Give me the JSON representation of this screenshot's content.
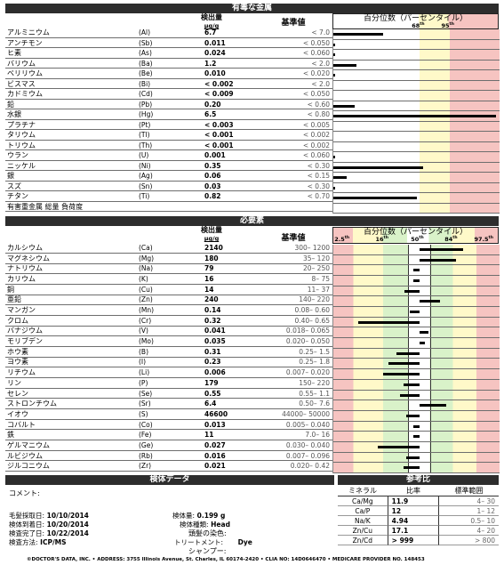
{
  "toxic": {
    "header": "有毒な金属",
    "col_result": "検出量",
    "col_unit": "µg/g",
    "col_reference": "基準値",
    "col_percentile": "百分位数（パーセンタイル）",
    "pct_labels": [
      {
        "n": "68",
        "s": "th"
      },
      {
        "n": "95",
        "s": "th"
      }
    ],
    "rows": [
      {
        "name": "アルミニウム",
        "symbol": "(Al)",
        "value": "6.7",
        "reference": "< 7.0",
        "bar": 0.3
      },
      {
        "name": "アンチモン",
        "symbol": "(Sb)",
        "value": "0.011",
        "reference": "< 0.050",
        "bar": 0.01
      },
      {
        "name": "ヒ素",
        "symbol": "(As)",
        "value": "0.024",
        "reference": "< 0.060",
        "bar": 0.01
      },
      {
        "name": "バリウム",
        "symbol": "(Ba)",
        "value": "1.2",
        "reference": "< 2.0",
        "bar": 0.14
      },
      {
        "name": "ベリリウム",
        "symbol": "(Be)",
        "value": "0.010",
        "reference": "< 0.020",
        "bar": 0.01
      },
      {
        "name": "ビスマス",
        "symbol": "(Bi)",
        "value": "< 0.002",
        "reference": "< 2.0",
        "bar": 0
      },
      {
        "name": "カドミウム",
        "symbol": "(Cd)",
        "value": "< 0.009",
        "reference": "< 0.050",
        "bar": 0
      },
      {
        "name": "鉛",
        "symbol": "(Pb)",
        "value": "0.20",
        "reference": "< 0.60",
        "bar": 0.13
      },
      {
        "name": "水銀",
        "symbol": "(Hg)",
        "value": "6.5",
        "reference": "< 0.80",
        "bar": 0.98
      },
      {
        "name": "プラチナ",
        "symbol": "(Pt)",
        "value": "< 0.003",
        "reference": "< 0.005",
        "bar": 0
      },
      {
        "name": "タリウム",
        "symbol": "(Tl)",
        "value": "< 0.001",
        "reference": "< 0.002",
        "bar": 0
      },
      {
        "name": "トリウム",
        "symbol": "(Th)",
        "value": "< 0.001",
        "reference": "< 0.002",
        "bar": 0
      },
      {
        "name": "ウラン",
        "symbol": "(U)",
        "value": "0.001",
        "reference": "< 0.060",
        "bar": 0.01
      },
      {
        "name": "ニッケル",
        "symbol": "(Ni)",
        "value": "0.35",
        "reference": "< 0.30",
        "bar": 0.54
      },
      {
        "name": "銀",
        "symbol": "(Ag)",
        "value": "0.06",
        "reference": "< 0.15",
        "bar": 0.08
      },
      {
        "name": "スズ",
        "symbol": "(Sn)",
        "value": "0.03",
        "reference": "< 0.30",
        "bar": 0.01
      },
      {
        "name": "チタン",
        "symbol": "(Ti)",
        "value": "0.82",
        "reference": "< 0.70",
        "bar": 0.5
      },
      {
        "name": "有害重金属 総量 負荷度",
        "symbol": "",
        "value": "",
        "reference": "",
        "bar": 0
      }
    ]
  },
  "essential": {
    "header": "必要素",
    "col_result": "検出量",
    "col_unit": "µg/g",
    "col_reference": "基準値",
    "col_percentile": "百分位数（パーセンタイル）",
    "pct_labels": [
      {
        "n": "2.5",
        "s": "th"
      },
      {
        "n": "16",
        "s": "th"
      },
      {
        "n": "50",
        "s": "th"
      },
      {
        "n": "84",
        "s": "th"
      },
      {
        "n": "97.5",
        "s": "th"
      }
    ],
    "rows": [
      {
        "name": "カルシウム",
        "symbol": "(Ca)",
        "value": "2140",
        "reference": "300– 1200",
        "from": 0.52,
        "to": 0.78
      },
      {
        "name": "マグネシウム",
        "symbol": "(Mg)",
        "value": "180",
        "reference": "35– 120",
        "from": 0.52,
        "to": 0.74
      },
      {
        "name": "ナトリウム",
        "symbol": "(Na)",
        "value": "79",
        "reference": "20– 250",
        "from": 0.48,
        "to": 0.52
      },
      {
        "name": "カリウム",
        "symbol": "(K)",
        "value": "16",
        "reference": "8– 75",
        "from": 0.48,
        "to": 0.52
      },
      {
        "name": "銅",
        "symbol": "(Cu)",
        "value": "14",
        "reference": "11– 37",
        "from": 0.43,
        "to": 0.52
      },
      {
        "name": "亜鉛",
        "symbol": "(Zn)",
        "value": "240",
        "reference": "140– 220",
        "from": 0.52,
        "to": 0.64
      },
      {
        "name": "マンガン",
        "symbol": "(Mn)",
        "value": "0.14",
        "reference": "0.08– 0.60",
        "from": 0.46,
        "to": 0.52
      },
      {
        "name": "クロム",
        "symbol": "(Cr)",
        "value": "0.32",
        "reference": "0.40– 0.65",
        "from": 0.15,
        "to": 0.52
      },
      {
        "name": "バナジウム",
        "symbol": "(V)",
        "value": "0.041",
        "reference": "0.018– 0.065",
        "from": 0.52,
        "to": 0.57
      },
      {
        "name": "モリブデン",
        "symbol": "(Mo)",
        "value": "0.035",
        "reference": "0.020– 0.050",
        "from": 0.52,
        "to": 0.55
      },
      {
        "name": "ホウ素",
        "symbol": "(B)",
        "value": "0.31",
        "reference": "0.25– 1.5",
        "from": 0.38,
        "to": 0.52
      },
      {
        "name": "ヨウ素",
        "symbol": "(I)",
        "value": "0.23",
        "reference": "0.25– 1.8",
        "from": 0.33,
        "to": 0.52
      },
      {
        "name": "リチウム",
        "symbol": "(Li)",
        "value": "0.006",
        "reference": "0.007– 0.020",
        "from": 0.3,
        "to": 0.52
      },
      {
        "name": "リン",
        "symbol": "(P)",
        "value": "179",
        "reference": "150– 220",
        "from": 0.42,
        "to": 0.52
      },
      {
        "name": "セレン",
        "symbol": "(Se)",
        "value": "0.55",
        "reference": "0.55– 1.1",
        "from": 0.4,
        "to": 0.52
      },
      {
        "name": "ストロンチウム",
        "symbol": "(Sr)",
        "value": "6.4",
        "reference": "0.50– 7.6",
        "from": 0.52,
        "to": 0.68
      },
      {
        "name": "イオウ",
        "symbol": "(S)",
        "value": "46600",
        "reference": "44000– 50000",
        "from": 0.44,
        "to": 0.52
      },
      {
        "name": "コバルト",
        "symbol": "(Co)",
        "value": "0.013",
        "reference": "0.005– 0.040",
        "from": 0.48,
        "to": 0.52
      },
      {
        "name": "鉄",
        "symbol": "(Fe)",
        "value": "11",
        "reference": "7.0– 16",
        "from": 0.48,
        "to": 0.52
      },
      {
        "name": "ゲルマニウム",
        "symbol": "(Ge)",
        "value": "0.027",
        "reference": "0.030– 0.040",
        "from": 0.27,
        "to": 0.52
      },
      {
        "name": "ルビジウム",
        "symbol": "(Rb)",
        "value": "0.016",
        "reference": "0.007– 0.096",
        "from": 0.44,
        "to": 0.52
      },
      {
        "name": "ジルコニウム",
        "symbol": "(Zr)",
        "value": "0.021",
        "reference": "0.020– 0.42",
        "from": 0.42,
        "to": 0.52
      }
    ]
  },
  "specimen": {
    "header": "検体データ",
    "comment_label": "コメント:",
    "collected_label": "毛髪採取日:",
    "collected": "10/10/2014",
    "received_label": "検体到着日:",
    "received": "10/20/2014",
    "completed_label": "検査完了日:",
    "completed": "10/22/2014",
    "method_label": "検査方法:",
    "method": "ICP/MS",
    "sample_size_label": "検体量:",
    "sample_size": "0.199 g",
    "sample_type_label": "検体種類:",
    "sample_type": "Head",
    "hair_color_label": "頭髪の染色:",
    "treatment_label": "トリートメント:",
    "treatment": "Dye",
    "shampoo_label": "シャンプー:"
  },
  "ratios": {
    "header": "参考比",
    "col_element": "ミネラル",
    "col_ratio": "比率",
    "col_range": "標準範囲",
    "rows": [
      {
        "element": "Ca/Mg",
        "ratio": "11.9",
        "range": "4– 30"
      },
      {
        "element": "Ca/P",
        "ratio": "12",
        "range": "1– 12"
      },
      {
        "element": "Na/K",
        "ratio": "4.94",
        "range": "0.5– 10"
      },
      {
        "element": "Zn/Cu",
        "ratio": "17.1",
        "range": "4– 20"
      },
      {
        "element": "Zn/Cd",
        "ratio": "> 999",
        "range": "> 800"
      }
    ]
  },
  "footer": "©DOCTOR'S DATA, INC. • ADDRESS: 3755 Illinois Avenue, St. Charles, IL 60174-2420 • CLIA NO: 14D0646470 • MEDICARE PROVIDER NO. 148453"
}
